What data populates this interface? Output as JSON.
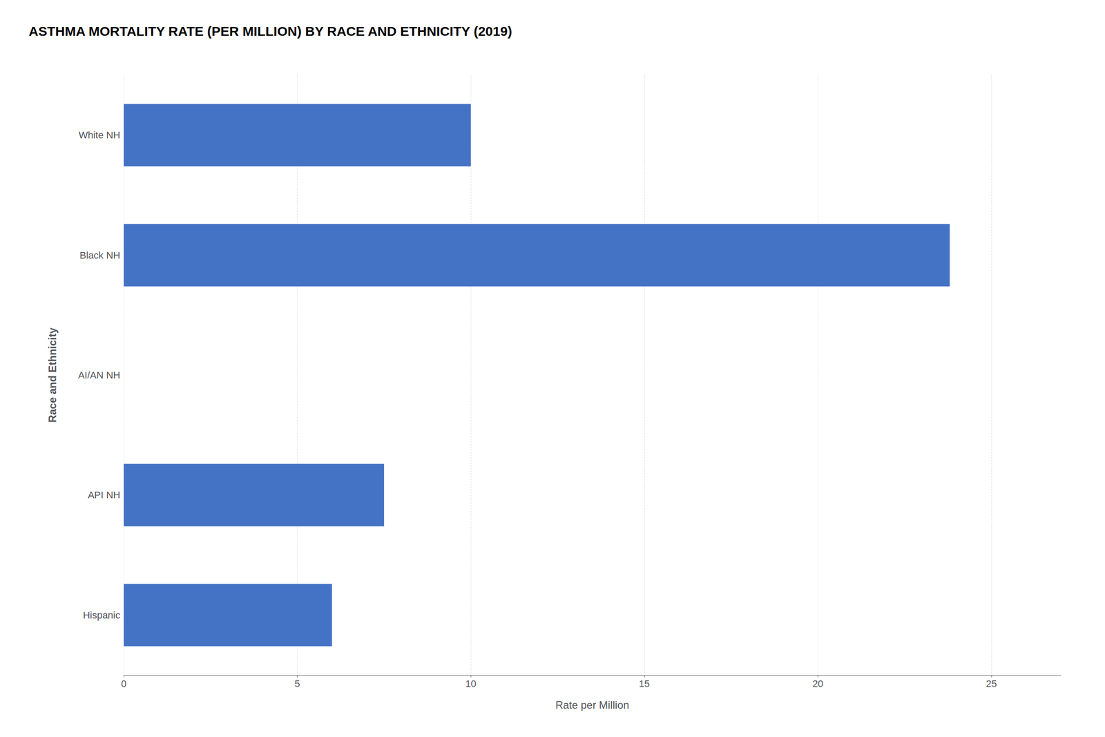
{
  "chart_data": {
    "type": "bar",
    "orientation": "horizontal",
    "title": "ASTHMA MORTALITY RATE (PER MILLION) BY RACE AND ETHNICITY (2019)",
    "categories": [
      "White NH",
      "Black NH",
      "AI/AN NH",
      "API NH",
      "Hispanic"
    ],
    "values": [
      10.0,
      23.8,
      0.0,
      7.5,
      6.0
    ],
    "color": "#4472C4",
    "xlabel": "Rate per Million",
    "ylabel": "Race and Ethnicity",
    "xlim": [
      0,
      27
    ],
    "xticks": [
      0,
      5,
      10,
      15,
      20,
      25
    ],
    "grid": true
  }
}
